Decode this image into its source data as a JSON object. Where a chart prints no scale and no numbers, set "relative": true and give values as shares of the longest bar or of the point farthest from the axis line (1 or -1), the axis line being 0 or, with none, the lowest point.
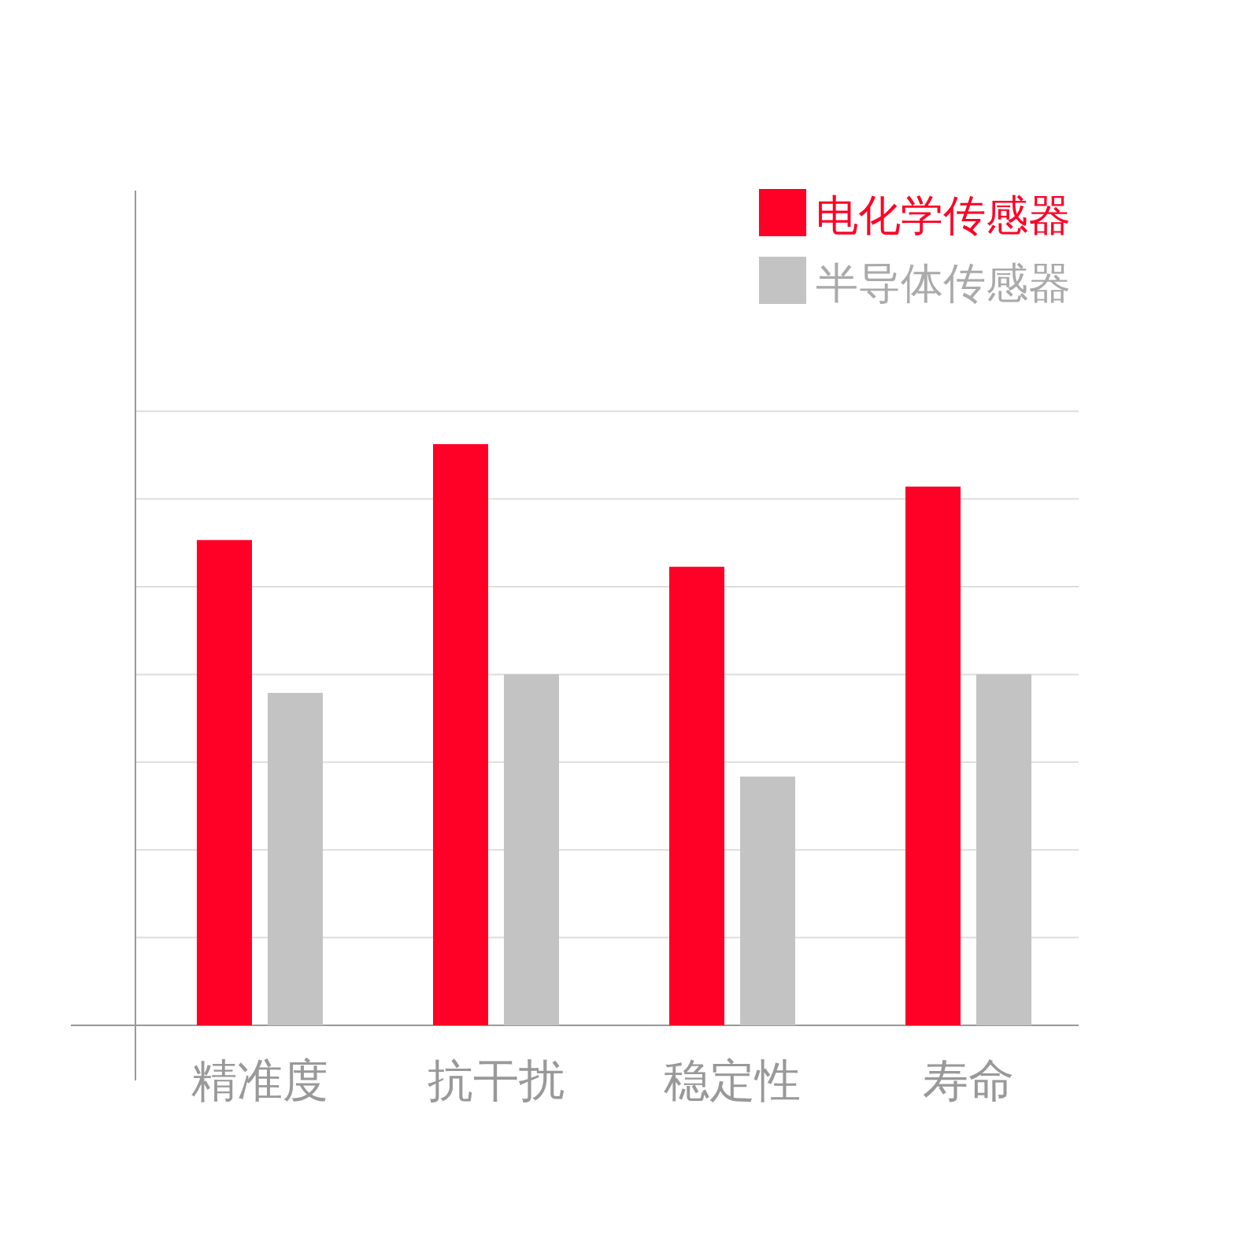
{
  "chart_data": {
    "type": "bar",
    "relative": true,
    "grid": "y",
    "legend": "top right",
    "categories": [
      "精准度",
      "抗干扰",
      "稳定性",
      "寿命"
    ],
    "series": [
      {
        "name": "电化学传感器",
        "color": "#ff0026",
        "values": [
          0.835,
          1,
          0.789,
          0.927
        ]
      },
      {
        "name": "半导体传感器",
        "color": "#c3c3c3",
        "values": [
          0.572,
          0.604,
          0.428,
          0.604
        ]
      }
    ]
  }
}
